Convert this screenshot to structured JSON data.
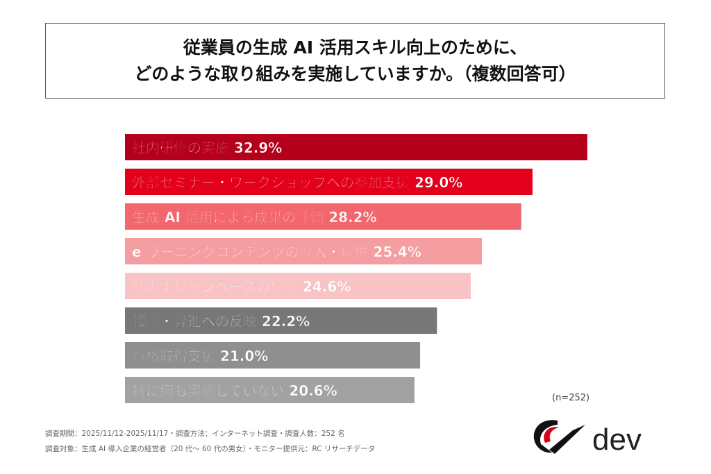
{
  "title": {
    "line1": "従業員の生成 AI 活用スキル向上のために、",
    "line2": "どのような取り組みを実施していますか。（複数回答可）"
  },
  "chart_data": {
    "type": "bar",
    "orientation": "horizontal",
    "categories": [
      "社内研修の実施",
      "外部セミナー・ワークショップへの参加支援",
      "生成 AI 活用による成果の評価",
      "e ラーニングコンテンツの導入・提供",
      "社内ナレッジベースの構築",
      "報酬・昇進への反映",
      "資格取得支援",
      "特に何も実施していない"
    ],
    "values": [
      32.9,
      29.0,
      28.2,
      25.4,
      24.6,
      22.2,
      21.0,
      20.6
    ],
    "unit": "%",
    "colors": [
      "#b5001c",
      "#e3001d",
      "#f2676d",
      "#f49ea2",
      "#f8c3c5",
      "#777777",
      "#8f8f8f",
      "#a2a2a2"
    ],
    "xlim": [
      0,
      33
    ],
    "grid": false,
    "legend": "none"
  },
  "sample_size": "(n=252)",
  "footer": {
    "line1": "調査期間：2025/11/12-2025/11/17・調査方法：インターネット調査・調査人数：252 名",
    "line2": "調査対象：生成 AI 導入企業の経営者（20 代～ 60 代の男女）・モニター提供元：RC リサーチデータ"
  },
  "logo": {
    "text": "dev"
  }
}
